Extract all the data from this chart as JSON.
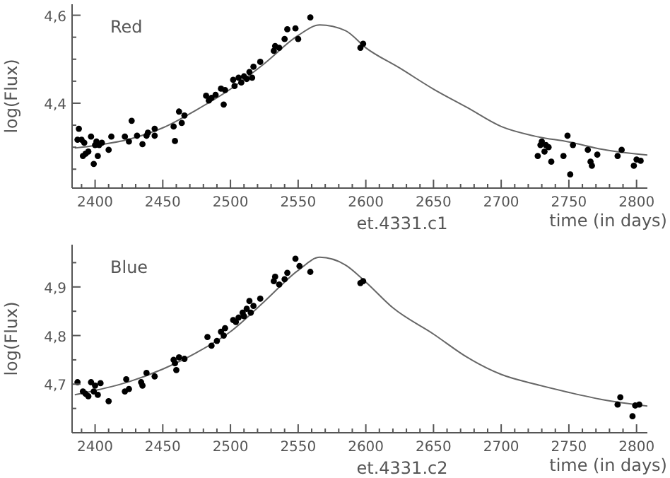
{
  "chart_data": [
    {
      "type": "scatter",
      "title": "Red",
      "xlabel": "time (in days)",
      "ylabel": "log(Flux)",
      "annotations": [
        "et.4331.c1"
      ],
      "xlim": [
        2383,
        2808
      ],
      "ylim": [
        4.207,
        4.625
      ],
      "xticks": [
        2400,
        2450,
        2500,
        2550,
        2600,
        2650,
        2700,
        2750,
        2800,
        {
          "value": 2390,
          "label": null
        },
        {
          "value": 2410,
          "label": null
        },
        {
          "value": 2420,
          "label": null
        },
        {
          "value": 2430,
          "label": null
        },
        {
          "value": 2440,
          "label": null
        },
        {
          "value": 2460,
          "label": null
        },
        {
          "value": 2470,
          "label": null
        },
        {
          "value": 2480,
          "label": null
        },
        {
          "value": 2490,
          "label": null
        },
        {
          "value": 2510,
          "label": null
        },
        {
          "value": 2520,
          "label": null
        },
        {
          "value": 2530,
          "label": null
        },
        {
          "value": 2540,
          "label": null
        },
        {
          "value": 2560,
          "label": null
        },
        {
          "value": 2570,
          "label": null
        },
        {
          "value": 2580,
          "label": null
        },
        {
          "value": 2590,
          "label": null
        },
        {
          "value": 2610,
          "label": null
        },
        {
          "value": 2620,
          "label": null
        },
        {
          "value": 2630,
          "label": null
        },
        {
          "value": 2640,
          "label": null
        },
        {
          "value": 2660,
          "label": null
        },
        {
          "value": 2670,
          "label": null
        },
        {
          "value": 2680,
          "label": null
        },
        {
          "value": 2690,
          "label": null
        },
        {
          "value": 2710,
          "label": null
        },
        {
          "value": 2720,
          "label": null
        },
        {
          "value": 2730,
          "label": null
        },
        {
          "value": 2740,
          "label": null
        },
        {
          "value": 2760,
          "label": null
        },
        {
          "value": 2770,
          "label": null
        },
        {
          "value": 2780,
          "label": null
        },
        {
          "value": 2790,
          "label": null
        }
      ],
      "yticks": [
        {
          "value": 4.4,
          "label": "4,4"
        },
        {
          "value": 4.6,
          "label": "4,6"
        },
        {
          "value": 4.25,
          "label": null
        },
        {
          "value": 4.3,
          "label": null
        },
        {
          "value": 4.35,
          "label": null
        },
        {
          "value": 4.45,
          "label": null
        },
        {
          "value": 4.5,
          "label": null
        },
        {
          "value": 4.55,
          "label": null
        }
      ],
      "marker": "circle",
      "grid": false,
      "series": [
        {
          "color": "#000000",
          "x": [
            2388,
            2387,
            2390,
            2392,
            2391,
            2393,
            2395,
            2397,
            2399,
            2400,
            2401,
            2402,
            2403,
            2405,
            2410,
            2412,
            2422,
            2425,
            2427,
            2431,
            2435,
            2438,
            2439,
            2444,
            2444,
            2458,
            2459,
            2462,
            2464,
            2466,
            2482,
            2484,
            2486,
            2489,
            2493,
            2495,
            2496,
            2502,
            2503,
            2506,
            2508,
            2510,
            2512,
            2514,
            2516,
            2517,
            2522,
            2532,
            2533,
            2536,
            2540,
            2542,
            2548,
            2550,
            2559,
            2596,
            2598,
            2727,
            2729,
            2730,
            2732,
            2733,
            2735,
            2737,
            2746,
            2749,
            2751,
            2753,
            2764,
            2766,
            2767,
            2771,
            2786,
            2789,
            2798,
            2800,
            2803
          ],
          "values": [
            4.342,
            4.317,
            4.317,
            4.31,
            4.28,
            4.285,
            4.29,
            4.324,
            4.262,
            4.305,
            4.313,
            4.28,
            4.305,
            4.31,
            4.294,
            4.324,
            4.324,
            4.313,
            4.36,
            4.326,
            4.307,
            4.326,
            4.333,
            4.326,
            4.342,
            4.347,
            4.314,
            4.381,
            4.355,
            4.372,
            4.417,
            4.406,
            4.412,
            4.419,
            4.433,
            4.397,
            4.43,
            4.453,
            4.439,
            4.458,
            4.447,
            4.461,
            4.455,
            4.471,
            4.458,
            4.483,
            4.494,
            4.519,
            4.53,
            4.526,
            4.546,
            4.568,
            4.57,
            4.546,
            4.595,
            4.526,
            4.535,
            4.28,
            4.305,
            4.313,
            4.29,
            4.305,
            4.3,
            4.267,
            4.28,
            4.326,
            4.238,
            4.305,
            4.294,
            4.267,
            4.258,
            4.283,
            4.28,
            4.294,
            4.258,
            4.272,
            4.269
          ]
        },
        {
          "type": "line",
          "marker": "none",
          "color": "#666666",
          "line_style": "solid",
          "x": [
            2385,
            2400,
            2425,
            2450,
            2475,
            2500,
            2525,
            2550,
            2566,
            2585,
            2600,
            2625,
            2650,
            2675,
            2700,
            2725,
            2750,
            2775,
            2808
          ],
          "values": [
            4.298,
            4.304,
            4.318,
            4.344,
            4.385,
            4.432,
            4.49,
            4.554,
            4.578,
            4.565,
            4.526,
            4.48,
            4.432,
            4.39,
            4.347,
            4.325,
            4.312,
            4.295,
            4.282
          ]
        }
      ]
    },
    {
      "type": "scatter",
      "title": "Blue",
      "xlabel": "time (in days)",
      "ylabel": "log(Flux)",
      "annotations": [
        "et.4331.c2"
      ],
      "xlim": [
        2383,
        2808
      ],
      "ylim": [
        4.6,
        4.987
      ],
      "xticks": [
        2400,
        2450,
        2500,
        2550,
        2600,
        2650,
        2700,
        2750,
        2800,
        {
          "value": 2390,
          "label": null
        },
        {
          "value": 2410,
          "label": null
        },
        {
          "value": 2420,
          "label": null
        },
        {
          "value": 2430,
          "label": null
        },
        {
          "value": 2440,
          "label": null
        },
        {
          "value": 2460,
          "label": null
        },
        {
          "value": 2470,
          "label": null
        },
        {
          "value": 2480,
          "label": null
        },
        {
          "value": 2490,
          "label": null
        },
        {
          "value": 2510,
          "label": null
        },
        {
          "value": 2520,
          "label": null
        },
        {
          "value": 2530,
          "label": null
        },
        {
          "value": 2540,
          "label": null
        },
        {
          "value": 2560,
          "label": null
        },
        {
          "value": 2570,
          "label": null
        },
        {
          "value": 2580,
          "label": null
        },
        {
          "value": 2590,
          "label": null
        },
        {
          "value": 2610,
          "label": null
        },
        {
          "value": 2620,
          "label": null
        },
        {
          "value": 2630,
          "label": null
        },
        {
          "value": 2640,
          "label": null
        },
        {
          "value": 2660,
          "label": null
        },
        {
          "value": 2670,
          "label": null
        },
        {
          "value": 2680,
          "label": null
        },
        {
          "value": 2690,
          "label": null
        },
        {
          "value": 2710,
          "label": null
        },
        {
          "value": 2720,
          "label": null
        },
        {
          "value": 2730,
          "label": null
        },
        {
          "value": 2740,
          "label": null
        },
        {
          "value": 2760,
          "label": null
        },
        {
          "value": 2770,
          "label": null
        },
        {
          "value": 2780,
          "label": null
        },
        {
          "value": 2790,
          "label": null
        }
      ],
      "yticks": [
        {
          "value": 4.7,
          "label": "4,7"
        },
        {
          "value": 4.8,
          "label": "4,8"
        },
        {
          "value": 4.9,
          "label": "4,9"
        },
        {
          "value": 4.65,
          "label": null
        },
        {
          "value": 4.75,
          "label": null
        },
        {
          "value": 4.85,
          "label": null
        },
        {
          "value": 4.95,
          "label": null
        }
      ],
      "marker": "circle",
      "grid": false,
      "series": [
        {
          "color": "#000000",
          "x": [
            2387,
            2391,
            2393,
            2395,
            2397,
            2399,
            2400,
            2402,
            2404,
            2410,
            2422,
            2423,
            2425,
            2434,
            2435,
            2438,
            2444,
            2458,
            2459,
            2460,
            2462,
            2466,
            2483,
            2486,
            2490,
            2493,
            2495,
            2496,
            2502,
            2504,
            2506,
            2509,
            2510,
            2512,
            2514,
            2515,
            2517,
            2522,
            2532,
            2533,
            2536,
            2540,
            2542,
            2548,
            2551,
            2559,
            2596,
            2598,
            2786,
            2788,
            2797,
            2799,
            2802
          ],
          "values": [
            4.704,
            4.685,
            4.68,
            4.675,
            4.704,
            4.685,
            4.697,
            4.678,
            4.702,
            4.665,
            4.685,
            4.71,
            4.69,
            4.704,
            4.697,
            4.723,
            4.716,
            4.75,
            4.743,
            4.729,
            4.755,
            4.752,
            4.797,
            4.779,
            4.789,
            4.808,
            4.8,
            4.815,
            4.832,
            4.828,
            4.837,
            4.847,
            4.84,
            4.855,
            4.871,
            4.847,
            4.861,
            4.876,
            4.912,
            4.921,
            4.905,
            4.916,
            4.929,
            4.958,
            4.943,
            4.931,
            4.908,
            4.912,
            4.658,
            4.673,
            4.634,
            4.656,
            4.658
          ]
        },
        {
          "type": "line",
          "marker": "none",
          "color": "#666666",
          "line_style": "solid",
          "x": [
            2385,
            2400,
            2425,
            2450,
            2475,
            2500,
            2525,
            2550,
            2566,
            2585,
            2600,
            2620,
            2650,
            2675,
            2700,
            2725,
            2750,
            2775,
            2808
          ],
          "values": [
            4.678,
            4.687,
            4.705,
            4.731,
            4.765,
            4.808,
            4.87,
            4.934,
            4.961,
            4.945,
            4.91,
            4.857,
            4.803,
            4.755,
            4.72,
            4.7,
            4.683,
            4.668,
            4.655
          ]
        }
      ]
    }
  ]
}
